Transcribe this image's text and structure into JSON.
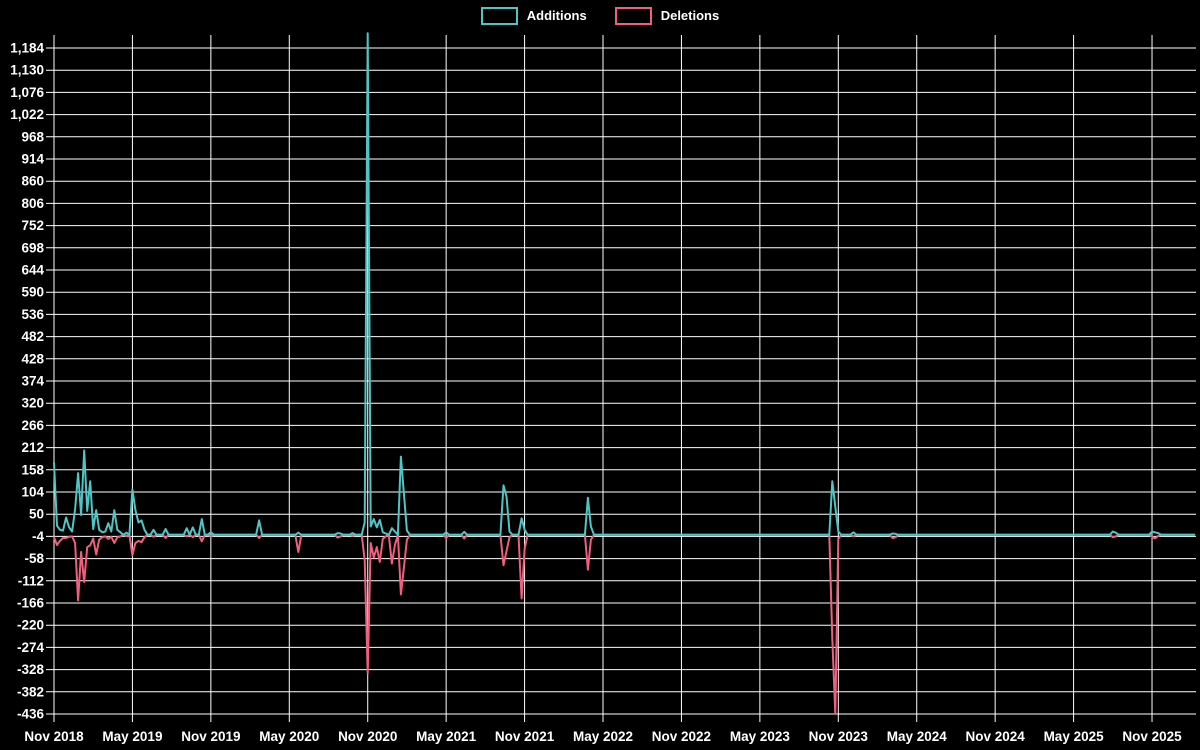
{
  "chart_data": {
    "type": "line",
    "title": "",
    "background_color": "#000000",
    "grid": true,
    "grid_color": "#ffffff",
    "text_color": "#ffffff",
    "legend": [
      "Additions",
      "Deletions"
    ],
    "legend_position": "top-center",
    "x_axis": {
      "tick_labels": [
        "Nov 2018",
        "May 2019",
        "Nov 2019",
        "May 2020",
        "Nov 2020",
        "May 2021",
        "Nov 2021",
        "May 2022",
        "Nov 2022",
        "May 2023",
        "Nov 2023",
        "May 2024",
        "Nov 2024",
        "May 2025",
        "Nov 2025"
      ],
      "unit": "week",
      "weeks_per_tick": 26,
      "total_weeks": 379
    },
    "y_axis": {
      "tick_labels": [
        "1,184",
        "1,130",
        "1,076",
        "1,022",
        "968",
        "914",
        "860",
        "806",
        "752",
        "698",
        "644",
        "590",
        "536",
        "482",
        "428",
        "374",
        "320",
        "266",
        "212",
        "158",
        "104",
        "50",
        "-4",
        "-58",
        "-112",
        "-166",
        "-220",
        "-274",
        "-328",
        "-382",
        "-436"
      ],
      "max": 1184,
      "min": -436,
      "step": 54
    },
    "series": [
      {
        "name": "Additions",
        "color": "#4ec6c6",
        "pair_index": 0
      },
      {
        "name": "Deletions",
        "color": "#f25f7c",
        "pair_index": 1
      }
    ],
    "default_week_value": [
      0,
      0
    ],
    "weekly_nonzero": {
      "0": [
        175,
        -6
      ],
      "1": [
        22,
        -25
      ],
      "2": [
        12,
        -15
      ],
      "3": [
        10,
        -8
      ],
      "4": [
        42,
        -8
      ],
      "5": [
        18,
        -5
      ],
      "6": [
        8,
        -4
      ],
      "7": [
        62,
        -20
      ],
      "8": [
        150,
        -160
      ],
      "9": [
        48,
        -42
      ],
      "10": [
        205,
        -115
      ],
      "11": [
        58,
        -30
      ],
      "12": [
        130,
        -26
      ],
      "13": [
        14,
        -9
      ],
      "14": [
        60,
        -48
      ],
      "15": [
        12,
        -12
      ],
      "16": [
        6,
        -6
      ],
      "17": [
        8,
        -4
      ],
      "18": [
        28,
        -10
      ],
      "19": [
        8,
        -5
      ],
      "20": [
        60,
        -20
      ],
      "21": [
        12,
        -6
      ],
      "22": [
        6,
        -4
      ],
      "24": [
        5,
        -3
      ],
      "26": [
        110,
        -50
      ],
      "27": [
        60,
        -20
      ],
      "28": [
        30,
        -15
      ],
      "29": [
        35,
        -18
      ],
      "30": [
        12,
        -6
      ],
      "33": [
        12,
        -5
      ],
      "37": [
        14,
        -8
      ],
      "44": [
        16,
        -4
      ],
      "46": [
        18,
        -6
      ],
      "49": [
        38,
        -16
      ],
      "52": [
        6,
        -3
      ],
      "68": [
        35,
        -8
      ],
      "81": [
        5,
        -42
      ],
      "94": [
        4,
        -7
      ],
      "95": [
        3,
        -4
      ],
      "99": [
        4,
        -2
      ],
      "103": [
        30,
        -62
      ],
      "104": [
        1220,
        -337
      ],
      "105": [
        20,
        -20
      ],
      "106": [
        38,
        -55
      ],
      "107": [
        18,
        -30
      ],
      "108": [
        36,
        -66
      ],
      "109": [
        6,
        -10
      ],
      "110": [
        3,
        -4
      ],
      "112": [
        16,
        -70
      ],
      "113": [
        8,
        -25
      ],
      "115": [
        190,
        -145
      ],
      "116": [
        100,
        -80
      ],
      "117": [
        10,
        -12
      ],
      "130": [
        6,
        -8
      ],
      "136": [
        7,
        -9
      ],
      "149": [
        120,
        -74
      ],
      "150": [
        93,
        -40
      ],
      "151": [
        8,
        -6
      ],
      "155": [
        40,
        -155
      ],
      "156": [
        12,
        -35
      ],
      "177": [
        90,
        -85
      ],
      "178": [
        20,
        -12
      ],
      "258": [
        130,
        -252
      ],
      "259": [
        68,
        -436
      ],
      "260": [
        8,
        -10
      ],
      "265": [
        6,
        -4
      ],
      "278": [
        3,
        -8
      ],
      "279": [
        2,
        -6
      ],
      "351": [
        8,
        -6
      ],
      "352": [
        5,
        -4
      ],
      "364": [
        8,
        -4
      ],
      "365": [
        6,
        -9
      ],
      "366": [
        4,
        -3
      ]
    }
  }
}
